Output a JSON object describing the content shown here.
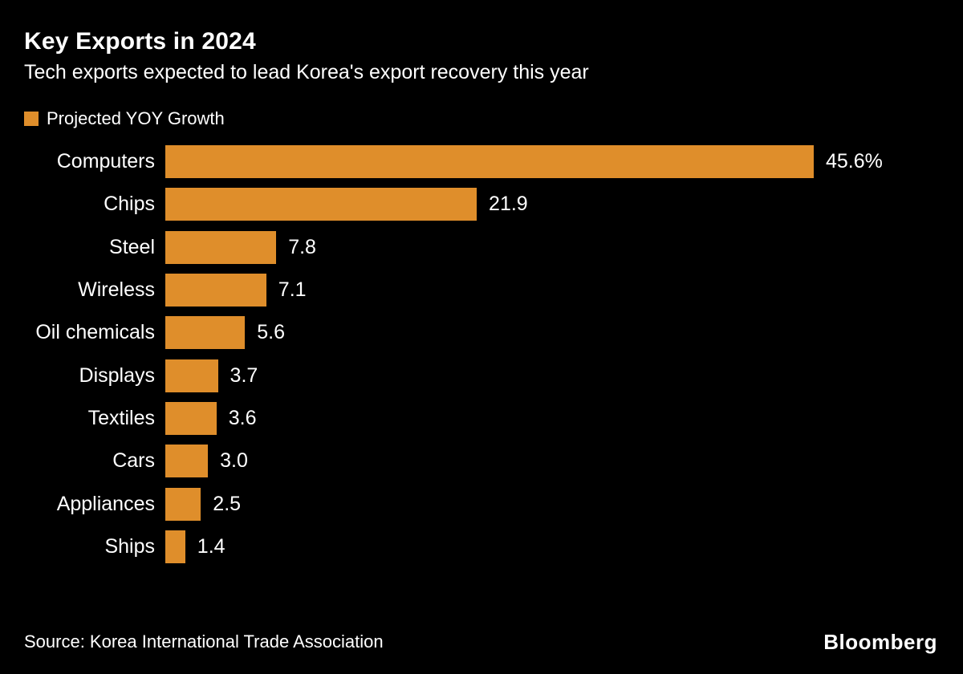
{
  "header": {
    "title": "Key Exports in 2024",
    "subtitle": "Tech exports expected to lead Korea's export recovery this year"
  },
  "legend": {
    "label": "Projected YOY Growth",
    "swatch_color": "#DF8E2B"
  },
  "chart_data": {
    "type": "bar",
    "orientation": "horizontal",
    "title": "Key Exports in 2024",
    "subtitle": "Tech exports expected to lead Korea's export recovery this year",
    "series_name": "Projected YOY Growth",
    "categories": [
      "Computers",
      "Chips",
      "Steel",
      "Wireless",
      "Oil chemicals",
      "Displays",
      "Textiles",
      "Cars",
      "Appliances",
      "Ships"
    ],
    "values": [
      45.6,
      21.9,
      7.8,
      7.1,
      5.6,
      3.7,
      3.6,
      3.0,
      2.5,
      1.4
    ],
    "value_labels": [
      "45.6%",
      "21.9",
      "7.8",
      "7.1",
      "5.6",
      "3.7",
      "3.6",
      "3.0",
      "2.5",
      "1.4"
    ],
    "unit": "percent YOY growth",
    "xlim": [
      0,
      45.6
    ],
    "bar_color": "#DF8E2B",
    "grid": false,
    "legend_position": "top-left"
  },
  "footer": {
    "source": "Source: Korea International Trade Association",
    "brand": "Bloomberg"
  },
  "colors": {
    "background": "#000000",
    "text": "#FFFFFF",
    "accent_orange": "#DF8E2B"
  }
}
